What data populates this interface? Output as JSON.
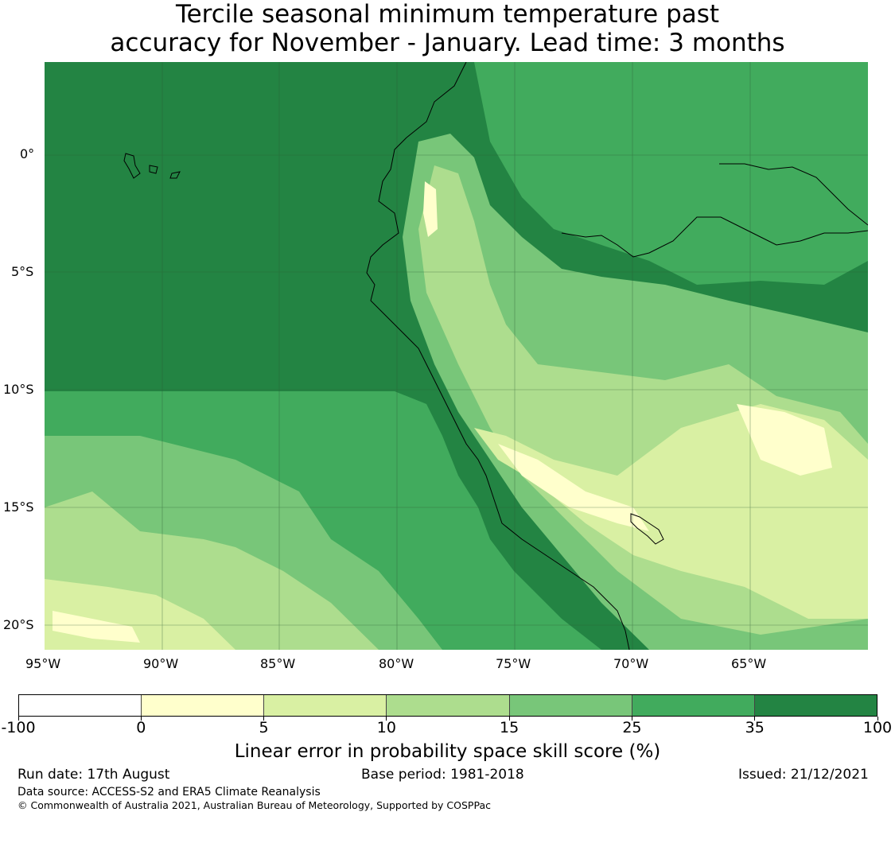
{
  "title": {
    "line1": "Tercile seasonal minimum temperature past",
    "line2": "accuracy for November - January. Lead time: 3 months"
  },
  "map": {
    "lat_labels": [
      "0°",
      "5°S",
      "10°S",
      "15°S",
      "20°S"
    ],
    "lon_labels": [
      "95°W",
      "90°W",
      "85°W",
      "80°W",
      "75°W",
      "70°W",
      "65°W"
    ],
    "colors": {
      "lt0": "#ffffff",
      "b0_5": "#ffffcc",
      "b5_10": "#d9f0a3",
      "b10_15": "#addd8e",
      "b15_25": "#78c679",
      "b25_35": "#41ab5d",
      "b35_100": "#238443"
    }
  },
  "colorbar": {
    "bounds": [
      "-100",
      "0",
      "5",
      "10",
      "15",
      "25",
      "35",
      "100"
    ],
    "colors": [
      "#ffffff",
      "#ffffcc",
      "#d9f0a3",
      "#addd8e",
      "#78c679",
      "#41ab5d",
      "#238443"
    ],
    "label": "Linear error in probability space skill score (%)"
  },
  "footer": {
    "run_date": "Run date: 17th August",
    "base_period": "Base period: 1981-2018",
    "issued": "Issued: 21/12/2021",
    "data_source": "Data source: ACCESS-S2 and ERA5 Climate Reanalysis",
    "copyright": "© Commonwealth of Australia 2021, Australian Bureau of Meteorology, Supported by COSPPac"
  }
}
